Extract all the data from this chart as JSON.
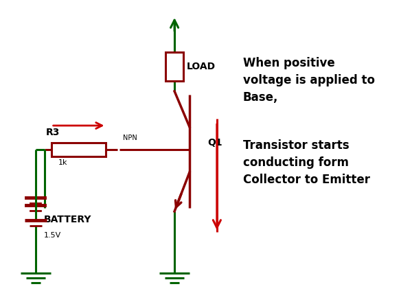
{
  "bg_color": "#ffffff",
  "dark_green": "#006400",
  "dark_red": "#8B0000",
  "red": "#CC0000",
  "text_color": "#000000",
  "title_text1": "When positive\nvoltage is applied to\nBase,",
  "title_text2": "Transistor starts\nconducting form\nCollector to Emitter",
  "label_load": "LOAD",
  "label_q1": "Q1",
  "label_r3": "R3",
  "label_npn": "NPN",
  "label_1k": "1k",
  "label_battery": "BATTERY",
  "label_1v5": "1.5V"
}
